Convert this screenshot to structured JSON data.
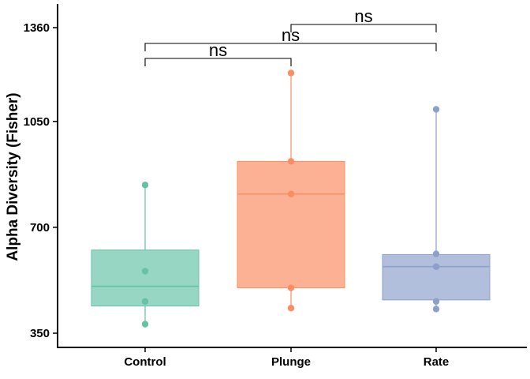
{
  "chart_data": {
    "type": "box",
    "title": "",
    "xlabel": "",
    "ylabel": "Alpha Diversity (Fisher)",
    "ylim": [
      300,
      1440
    ],
    "yticks": [
      350,
      700,
      1050,
      1360
    ],
    "categories": [
      "Control",
      "Plunge",
      "Rate"
    ],
    "colors": [
      "#66c2a5",
      "#fc8d62",
      "#8da0cb"
    ],
    "boxes": [
      {
        "name": "Control",
        "q1": 440,
        "median": 505,
        "q3": 625,
        "whisker_low": 380,
        "whisker_high": 840
      },
      {
        "name": "Plunge",
        "q1": 500,
        "median": 810,
        "q3": 918,
        "whisker_low": 433,
        "whisker_high": 1210
      },
      {
        "name": "Rate",
        "q1": 460,
        "median": 570,
        "q3": 610,
        "whisker_low": 430,
        "whisker_high": 1090
      }
    ],
    "points": [
      {
        "category": "Control",
        "values": [
          840,
          555,
          455,
          380
        ]
      },
      {
        "category": "Plunge",
        "values": [
          1210,
          918,
          810,
          500,
          433
        ]
      },
      {
        "category": "Rate",
        "values": [
          1090,
          612,
          570,
          455,
          430
        ]
      }
    ],
    "comparisons": [
      {
        "from": "Control",
        "to": "Plunge",
        "label": "ns",
        "level": 1
      },
      {
        "from": "Control",
        "to": "Rate",
        "label": "ns",
        "level": 2
      },
      {
        "from": "Plunge",
        "to": "Rate",
        "label": "ns",
        "level": 3
      }
    ],
    "grid": false,
    "legend": "none"
  }
}
